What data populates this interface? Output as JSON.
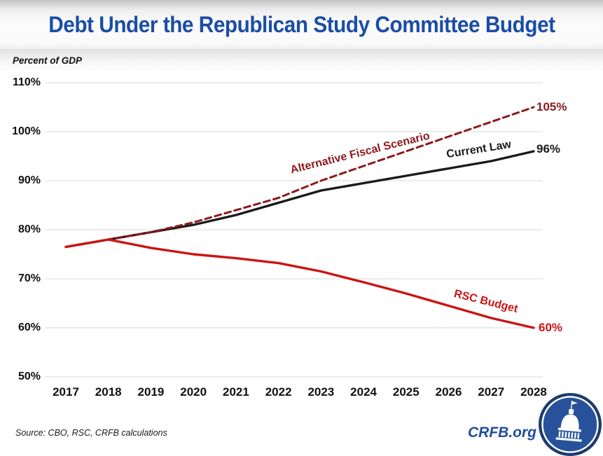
{
  "title": "Debt Under the Republican Study Committee Budget",
  "axis_note": "Percent of GDP",
  "source": "Source: CBO, RSC, CRFB calculations",
  "footer": {
    "site": "CRFB.org",
    "logo_icon": "capitol-dome"
  },
  "colors": {
    "title_blue": "#1B4DA7",
    "crfb_blue": "#1F4EA0",
    "current_law_black": "#1A1A1A",
    "afs_maroon": "#8C1A1C",
    "rsc_red": "#CC1414",
    "gridline": "#D9D9D9",
    "logo_navy": "#1C3C6C",
    "logo_blue": "#27529B"
  },
  "chart_data": {
    "type": "line",
    "title": "Debt Under the Republican Study Committee Budget",
    "xlabel": "",
    "ylabel": "Percent of GDP",
    "ylim": [
      50,
      110
    ],
    "grid": "horizontal-only",
    "legend_position": "inline-labels-on-lines",
    "x": [
      2017,
      2018,
      2019,
      2020,
      2021,
      2022,
      2023,
      2024,
      2025,
      2026,
      2027,
      2028
    ],
    "ytick_labels": [
      "110%",
      "100%",
      "90%",
      "80%",
      "70%",
      "60%",
      "50%"
    ],
    "series": [
      {
        "name": "Alternative Fiscal Scenario",
        "style": "dashed",
        "color": "#8C1A1C",
        "end_label": "105%",
        "values": [
          76.5,
          78,
          79.5,
          81.5,
          84,
          86.5,
          90,
          93,
          96,
          99,
          102,
          105
        ]
      },
      {
        "name": "Current Law",
        "style": "solid",
        "color": "#1A1A1A",
        "end_label": "96%",
        "values": [
          76.5,
          78,
          79.5,
          81,
          83,
          85.5,
          88,
          89.5,
          91,
          92.5,
          94,
          96
        ]
      },
      {
        "name": "RSC Budget",
        "style": "solid",
        "color": "#CC1414",
        "end_label": "60%",
        "values": [
          76.5,
          78,
          76.3,
          75,
          74.2,
          73.2,
          71.5,
          69.3,
          67,
          64.5,
          62,
          60
        ]
      }
    ]
  }
}
